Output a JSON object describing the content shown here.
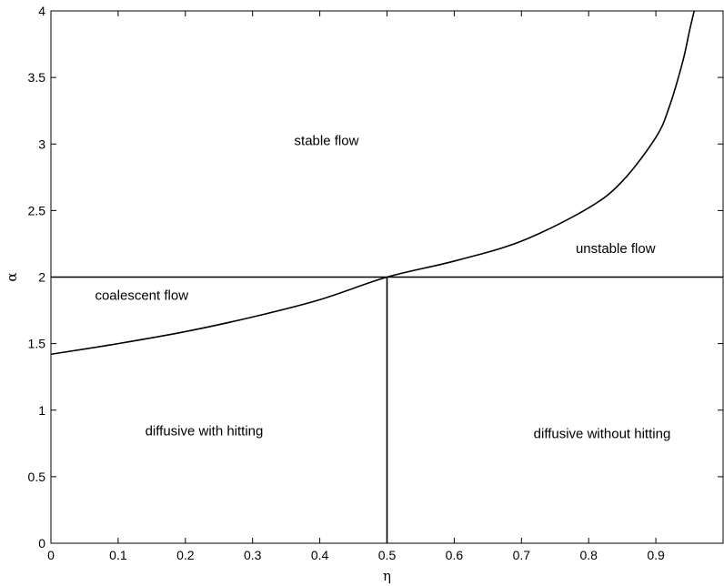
{
  "chart_data": {
    "type": "line",
    "title": "",
    "xlabel": "η",
    "ylabel": "α",
    "xlim": [
      0,
      1
    ],
    "ylim": [
      0,
      4
    ],
    "xticks": [
      0,
      0.1,
      0.2,
      0.3,
      0.4,
      0.5,
      0.6,
      0.7,
      0.8,
      0.9,
      1
    ],
    "xtick_labels": [
      "0",
      "0.1",
      "0.2",
      "0.3",
      "0.4",
      "0.5",
      "0.6",
      "0.7",
      "0.8",
      "0.9",
      ""
    ],
    "yticks": [
      0,
      0.5,
      1,
      1.5,
      2,
      2.5,
      3,
      3.5,
      4
    ],
    "ytick_labels": [
      "0",
      "0.5",
      "1",
      "1.5",
      "2",
      "2.5",
      "3",
      "3.5",
      "4"
    ],
    "grid": false,
    "series": [
      {
        "x": [
          0,
          0.1,
          0.2,
          0.3,
          0.4,
          0.5,
          0.6,
          0.7,
          0.8,
          0.85,
          0.9,
          0.92,
          0.94,
          0.95,
          0.957
        ],
        "y": [
          1.42,
          1.5,
          1.59,
          1.7,
          1.83,
          2.0,
          2.12,
          2.27,
          2.52,
          2.72,
          3.05,
          3.28,
          3.62,
          3.85,
          4.0
        ]
      },
      {
        "x": [
          0,
          1
        ],
        "y": [
          2,
          2
        ]
      },
      {
        "x": [
          0.5,
          0.5
        ],
        "y": [
          0,
          2
        ]
      }
    ],
    "annotations": [
      {
        "text": "stable flow",
        "x": 0.41,
        "y": 2.99
      },
      {
        "text": "unstable flow",
        "x": 0.84,
        "y": 2.18
      },
      {
        "text": "coalescent flow",
        "x": 0.135,
        "y": 1.83
      },
      {
        "text": "diffusive with hitting",
        "x": 0.228,
        "y": 0.81
      },
      {
        "text": "diffusive without hitting",
        "x": 0.82,
        "y": 0.79
      }
    ]
  }
}
